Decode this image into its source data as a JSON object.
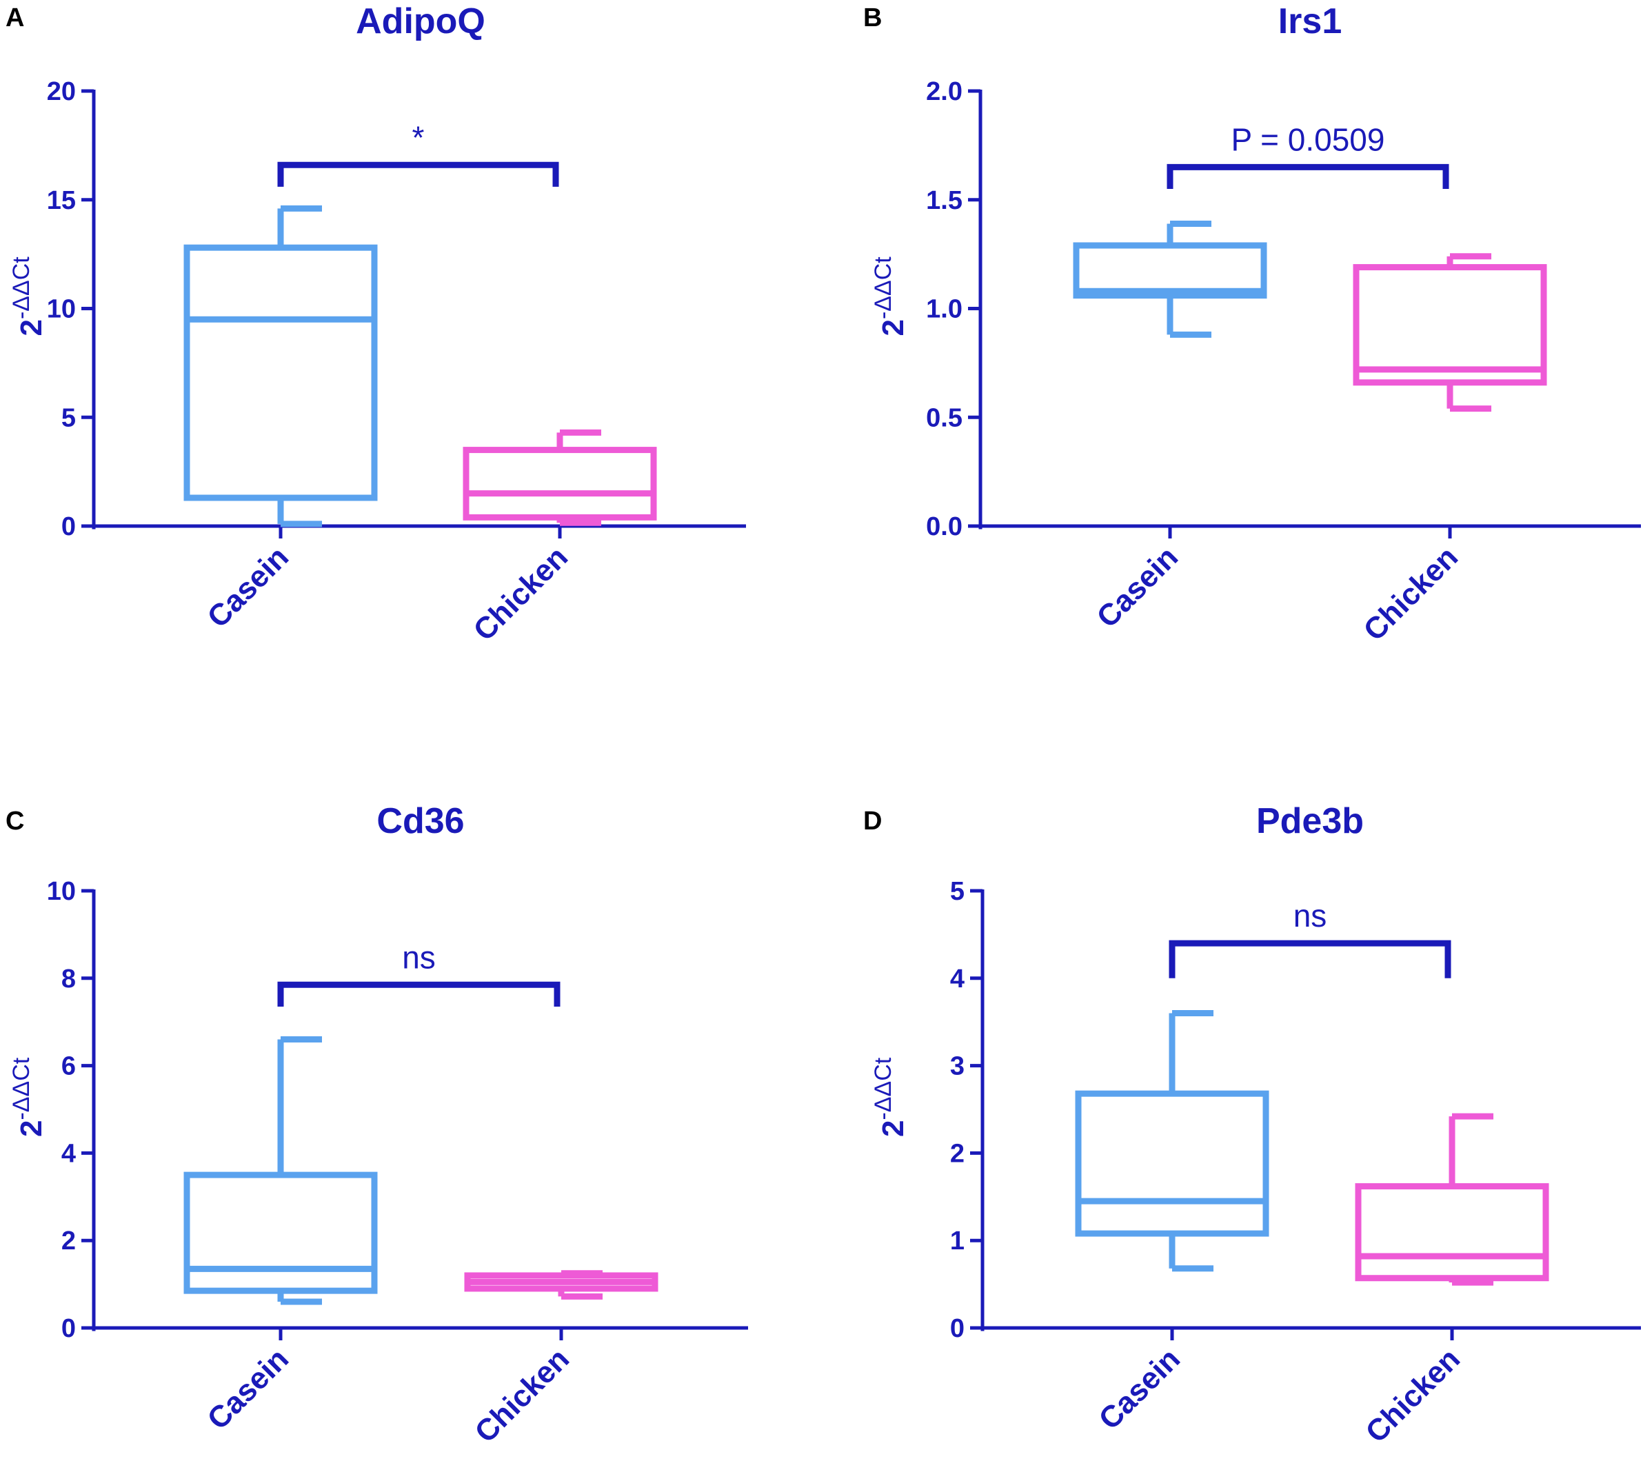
{
  "colors": {
    "axis": "#1a1ab8",
    "casein": "#5aa2ee",
    "chicken": "#ee5ad6",
    "text": "#1a1ab8",
    "panel_letter": "#000000"
  },
  "chart_data": [
    {
      "panel": "A",
      "type": "box",
      "title": "AdipoQ",
      "ylabel_base": "2",
      "ylabel_exponent": "-ΔΔCt",
      "ylim": [
        0,
        20
      ],
      "yticks": [
        "0",
        "5",
        "10",
        "15",
        "20"
      ],
      "ytick_values": [
        0,
        5,
        10,
        15,
        20
      ],
      "categories": [
        "Casein",
        "Chicken"
      ],
      "boxes": [
        {
          "name": "Casein",
          "min": 0.1,
          "q1": 1.3,
          "median": 9.5,
          "q3": 12.8,
          "max": 14.6
        },
        {
          "name": "Chicken",
          "min": 0.15,
          "q1": 0.4,
          "median": 1.5,
          "q3": 3.5,
          "max": 4.3
        }
      ],
      "significance": {
        "label": "*",
        "y": 16.6,
        "drop": 1.0
      }
    },
    {
      "panel": "B",
      "type": "box",
      "title": "Irs1",
      "ylabel_base": "2",
      "ylabel_exponent": "-ΔΔCt",
      "ylim": [
        0,
        2.0
      ],
      "yticks": [
        "0.0",
        "0.5",
        "1.0",
        "1.5",
        "2.0"
      ],
      "ytick_values": [
        0,
        0.5,
        1.0,
        1.5,
        2.0
      ],
      "categories": [
        "Casein",
        "Chicken"
      ],
      "boxes": [
        {
          "name": "Casein",
          "min": 0.88,
          "q1": 1.06,
          "median": 1.08,
          "q3": 1.29,
          "max": 1.39
        },
        {
          "name": "Chicken",
          "min": 0.54,
          "q1": 0.66,
          "median": 0.72,
          "q3": 1.19,
          "max": 1.24
        }
      ],
      "significance": {
        "label": "P = 0.0509",
        "y": 1.65,
        "drop": 0.1
      }
    },
    {
      "panel": "C",
      "type": "box",
      "title": "Cd36",
      "ylabel_base": "2",
      "ylabel_exponent": "-ΔΔCt",
      "ylim": [
        0,
        10
      ],
      "yticks": [
        "0",
        "2",
        "4",
        "6",
        "8",
        "10"
      ],
      "ytick_values": [
        0,
        2,
        4,
        6,
        8,
        10
      ],
      "categories": [
        "Casein",
        "Chicken"
      ],
      "boxes": [
        {
          "name": "Casein",
          "min": 0.6,
          "q1": 0.85,
          "median": 1.35,
          "q3": 3.5,
          "max": 6.6
        },
        {
          "name": "Chicken",
          "min": 0.72,
          "q1": 0.9,
          "median": 1.05,
          "q3": 1.2,
          "max": 1.25
        }
      ],
      "significance": {
        "label": "ns",
        "y": 7.85,
        "drop": 0.5
      }
    },
    {
      "panel": "D",
      "type": "box",
      "title": "Pde3b",
      "ylabel_base": "2",
      "ylabel_exponent": "-ΔΔCt",
      "ylim": [
        0,
        5
      ],
      "yticks": [
        "0",
        "1",
        "2",
        "3",
        "4",
        "5"
      ],
      "ytick_values": [
        0,
        1,
        2,
        3,
        4,
        5
      ],
      "categories": [
        "Casein",
        "Chicken"
      ],
      "boxes": [
        {
          "name": "Casein",
          "min": 0.68,
          "q1": 1.08,
          "median": 1.45,
          "q3": 2.68,
          "max": 3.6
        },
        {
          "name": "Chicken",
          "min": 0.52,
          "q1": 0.57,
          "median": 0.82,
          "q3": 1.62,
          "max": 2.42
        }
      ],
      "significance": {
        "label": "ns",
        "y": 4.4,
        "drop": 0.4
      }
    }
  ]
}
